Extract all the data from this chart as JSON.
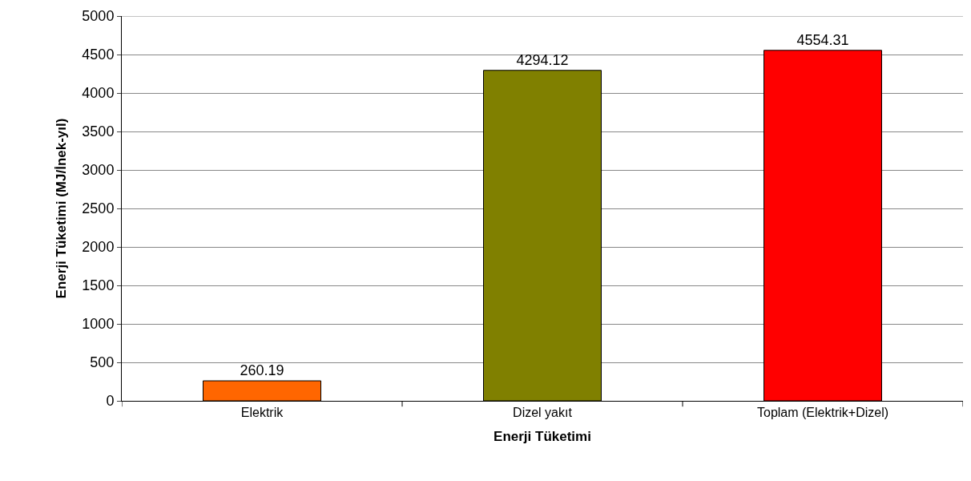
{
  "chart_data": {
    "type": "bar",
    "xlabel": "Enerji Tüketimi",
    "ylabel": "Enerji Tüketimi (MJ/İnek-yıl)",
    "categories": [
      "Elektrik",
      "Dizel yakıt",
      "Toplam (Elektrik+Dizel)"
    ],
    "values": [
      260.19,
      4294.12,
      4554.31
    ],
    "colors": [
      "#ff6600",
      "#808000",
      "#ff0000"
    ],
    "ylim": [
      0,
      5000
    ],
    "yticks": [
      0,
      500,
      1000,
      1500,
      2000,
      2500,
      3000,
      3500,
      4000,
      4500,
      5000
    ],
    "grid": "y",
    "data_labels": true
  }
}
